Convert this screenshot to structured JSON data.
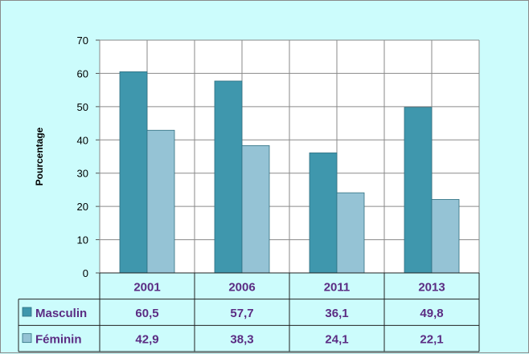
{
  "chart_data": {
    "type": "bar",
    "title": "",
    "xlabel": "",
    "ylabel": "Pourcentage",
    "ylim": [
      0,
      70
    ],
    "yticks": [
      0,
      10,
      20,
      30,
      40,
      50,
      60,
      70
    ],
    "categories": [
      "2001",
      "2006",
      "2011",
      "2013"
    ],
    "series": [
      {
        "name": "Masculin",
        "values": [
          60.5,
          57.7,
          36.1,
          49.8
        ],
        "color": "#3f97ad",
        "labels": [
          "60,5",
          "57,7",
          "36,1",
          "49,8"
        ]
      },
      {
        "name": "Féminin",
        "values": [
          42.9,
          38.3,
          24.1,
          22.1
        ],
        "color": "#95c3d5",
        "labels": [
          "42,9",
          "38,3",
          "24,1",
          "22,1"
        ]
      }
    ],
    "grid": true,
    "legend": "data-table"
  },
  "colors": {
    "background": "#ccfcfc",
    "plot_area": "#ffffff",
    "gridline": "#8a8a8a",
    "label_text": "#5b2c83"
  }
}
